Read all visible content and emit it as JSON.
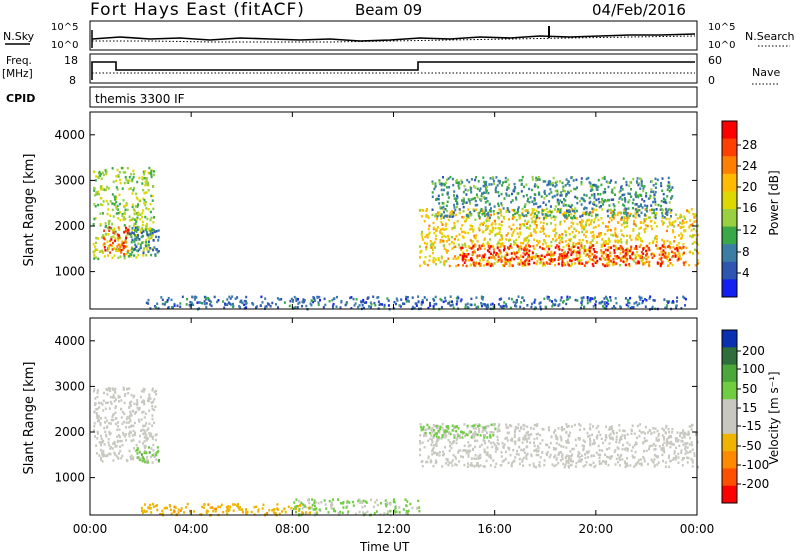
{
  "header": {
    "radar": "Fort Hays East (fitACF)",
    "beam": "Beam 09",
    "date": "04/Feb/2016"
  },
  "status": {
    "nsky_label": "N.Sky",
    "nsky_ticks": [
      "10^5",
      "10^0"
    ],
    "nsearch_label": "N.Search",
    "nsearch_ticks": [
      "10^5",
      "10^0"
    ],
    "freq_label_1": "Freq.",
    "freq_label_2": "[MHz]",
    "freq_ticks": [
      "18",
      "8"
    ],
    "nave_label": "Nave",
    "nave_ticks": [
      "60",
      "0"
    ],
    "cpid_label": "CPID",
    "cpid_value": "themis 3300 IF"
  },
  "chart_data": [
    {
      "type": "heatmap",
      "quantity": "power",
      "ylabel": "Slant Range [km]",
      "yticks": [
        "4000",
        "3000",
        "2000",
        "1000"
      ],
      "ylim": [
        180,
        4500
      ],
      "colorbar_label": "Power [dB]",
      "colorbar_ticks": [
        "28",
        "24",
        "20",
        "16",
        "12",
        "8",
        "4"
      ],
      "colorbar_colors": [
        "#ff0000",
        "#ff4000",
        "#ff8000",
        "#ffbb00",
        "#ddd800",
        "#98d040",
        "#38a848",
        "#3a7ea6",
        "#2e55b0",
        "#1420f0"
      ],
      "colorbar_range": [
        0,
        30
      ],
      "regions": [
        {
          "t0": 0.1,
          "t1": 2.5,
          "r0": 1300,
          "r1": 3300,
          "level": 14
        },
        {
          "t0": 0.5,
          "t1": 1.5,
          "r0": 1400,
          "r1": 2000,
          "level": 26
        },
        {
          "t0": 1.5,
          "t1": 2.7,
          "r0": 1350,
          "r1": 2000,
          "level": 7
        },
        {
          "t0": 2.2,
          "t1": 23.6,
          "r0": 200,
          "r1": 480,
          "level": 6
        },
        {
          "t0": 13.0,
          "t1": 24.0,
          "r0": 1150,
          "r1": 2400,
          "level": 18
        },
        {
          "t0": 14.5,
          "t1": 23.5,
          "r0": 1150,
          "r1": 1600,
          "level": 27
        },
        {
          "t0": 13.5,
          "t1": 23.0,
          "r0": 2200,
          "r1": 3100,
          "level": 9
        }
      ]
    },
    {
      "type": "heatmap",
      "quantity": "velocity",
      "ylabel": "Slant Range [km]",
      "yticks": [
        "4000",
        "3000",
        "2000",
        "1000"
      ],
      "ylim": [
        180,
        4500
      ],
      "xlabel": "Time UT",
      "xticks": [
        "00:00",
        "04:00",
        "08:00",
        "12:00",
        "16:00",
        "20:00",
        "00:00"
      ],
      "xlim": [
        0,
        24
      ],
      "colorbar_label": "Velocity [m s⁻¹]",
      "colorbar_ticks": [
        "200",
        "100",
        "50",
        "15",
        "-15",
        "-50",
        "-100",
        "-200"
      ],
      "colorbar_colors": [
        "#0a2fb0",
        "#2f6e3a",
        "#4aa83a",
        "#70cc40",
        "#c8c8c0",
        "#c8c8c0",
        "#f0b400",
        "#ff8a00",
        "#ff5000",
        "#ff0000"
      ],
      "colorbar_range": [
        -250,
        250
      ],
      "regions": [
        {
          "t0": 0.1,
          "t1": 2.6,
          "r0": 1350,
          "r1": 3000,
          "level": 0
        },
        {
          "t0": 1.8,
          "t1": 2.7,
          "r0": 1350,
          "r1": 1700,
          "level": 80
        },
        {
          "t0": 2.0,
          "t1": 9.0,
          "r0": 200,
          "r1": 450,
          "level": -80
        },
        {
          "t0": 8.0,
          "t1": 13.0,
          "r0": 200,
          "r1": 550,
          "level": 60
        },
        {
          "t0": 13.0,
          "t1": 24.0,
          "r0": 1250,
          "r1": 2200,
          "level": 0
        },
        {
          "t0": 13.0,
          "t1": 16.0,
          "r0": 1900,
          "r1": 2200,
          "level": 70
        }
      ]
    }
  ]
}
